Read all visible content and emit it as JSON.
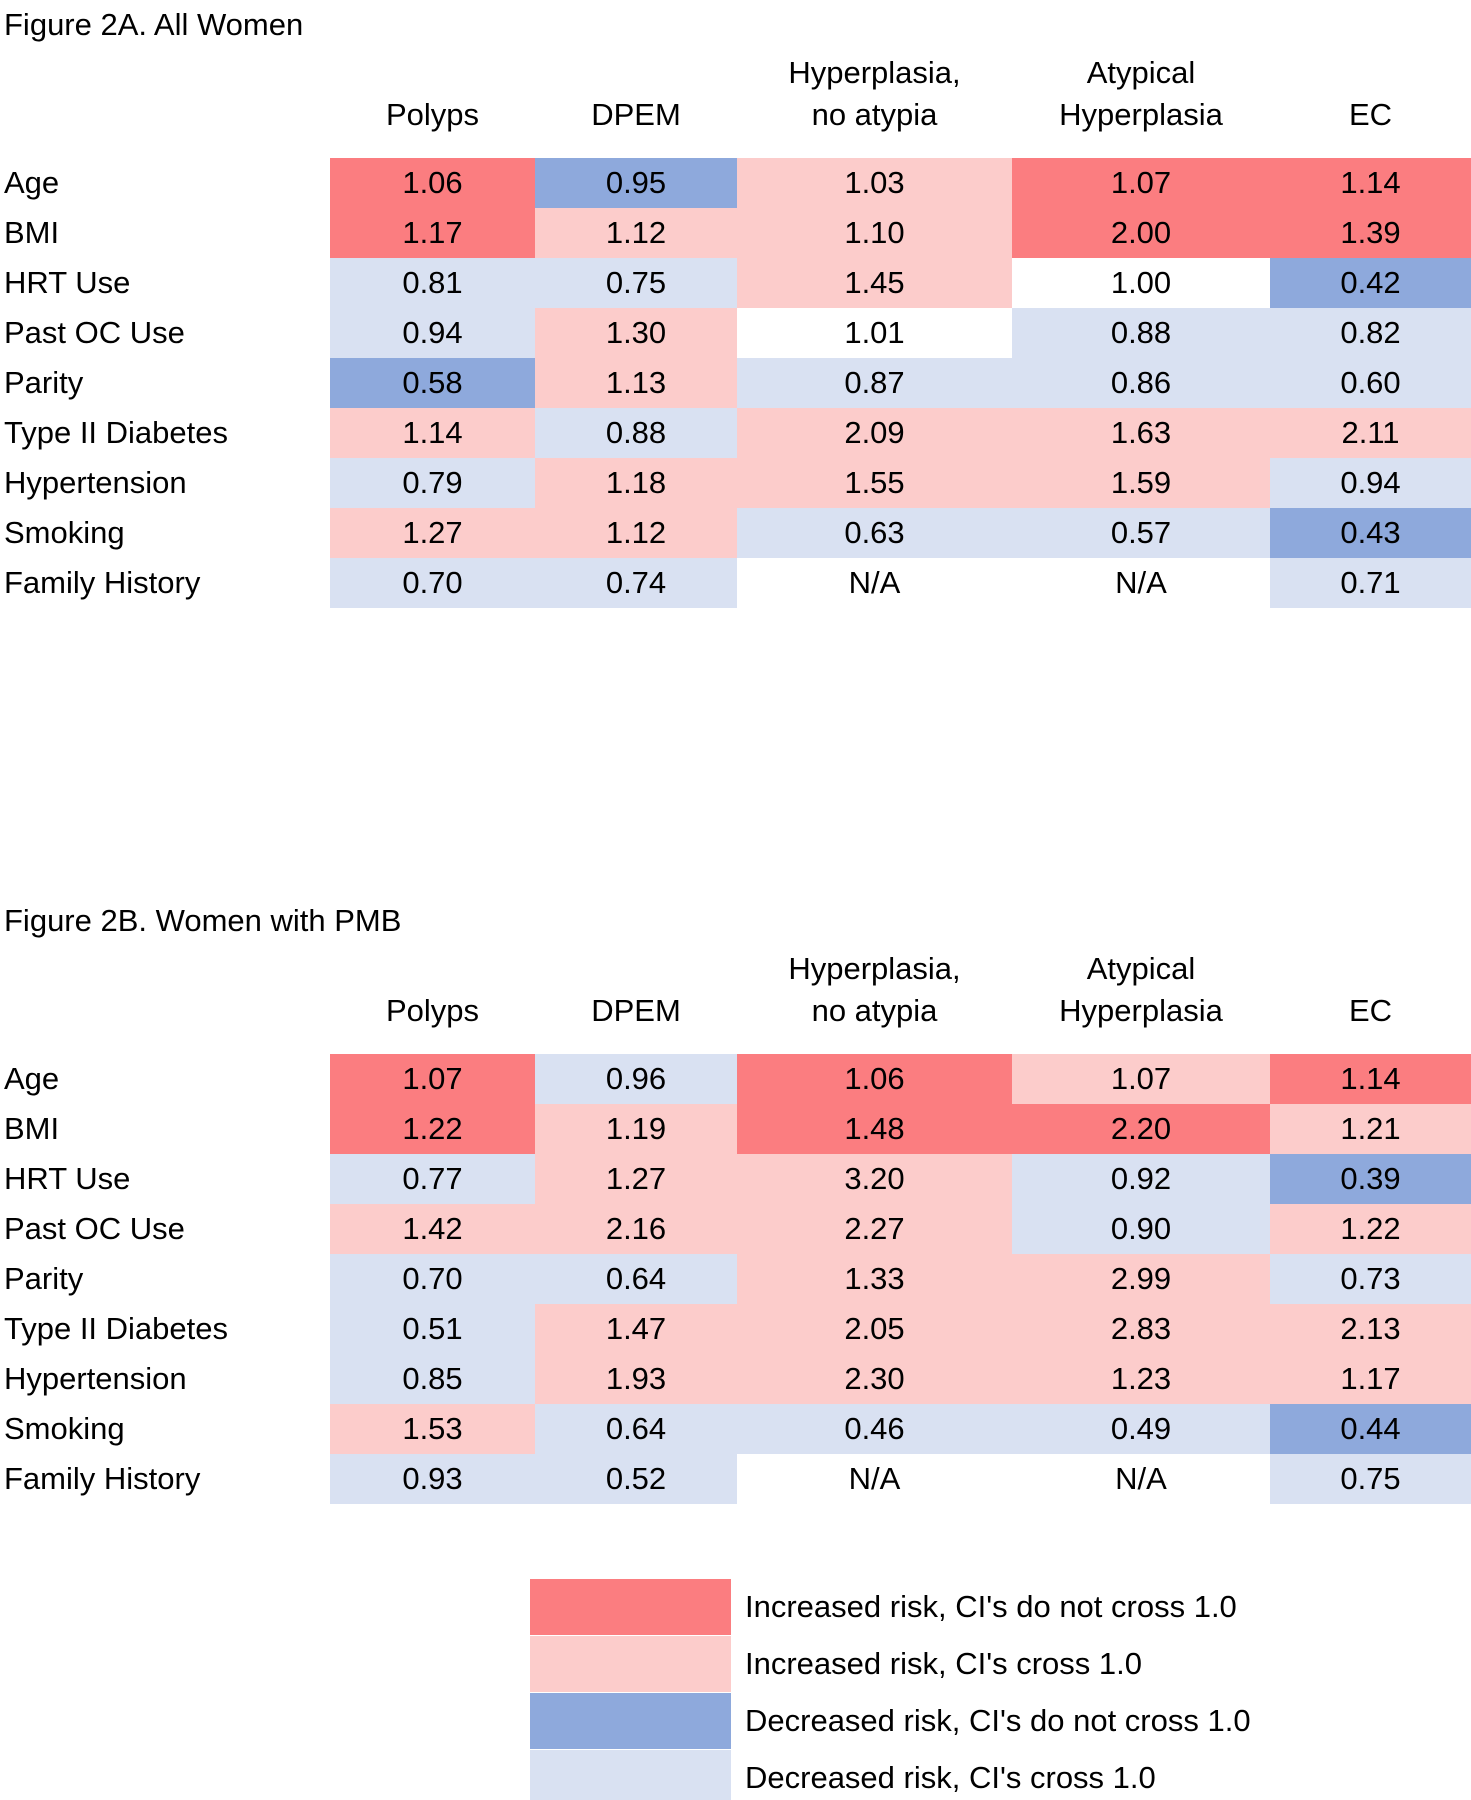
{
  "colors": {
    "increased_sig": "#FB7D80",
    "increased_ns": "#FCCCCB",
    "decreased_sig": "#8EA9DC",
    "decreased_ns": "#D9E1F2",
    "na": "#FFFFFF"
  },
  "figures": [
    {
      "title": "Figure 2A. All Women",
      "columns": [
        {
          "line1": "",
          "line2": "Polyps"
        },
        {
          "line1": "",
          "line2": "DPEM"
        },
        {
          "line1": "Hyperplasia,",
          "line2": "no atypia"
        },
        {
          "line1": "Atypical",
          "line2": "Hyperplasia"
        },
        {
          "line1": "",
          "line2": "EC"
        }
      ],
      "rows": [
        {
          "label": "Age",
          "cells": [
            [
              "1.06",
              "increased_sig"
            ],
            [
              "0.95",
              "decreased_sig"
            ],
            [
              "1.03",
              "increased_ns"
            ],
            [
              "1.07",
              "increased_sig"
            ],
            [
              "1.14",
              "increased_sig"
            ]
          ]
        },
        {
          "label": "BMI",
          "cells": [
            [
              "1.17",
              "increased_sig"
            ],
            [
              "1.12",
              "increased_ns"
            ],
            [
              "1.10",
              "increased_ns"
            ],
            [
              "2.00",
              "increased_sig"
            ],
            [
              "1.39",
              "increased_sig"
            ]
          ]
        },
        {
          "label": "HRT Use",
          "cells": [
            [
              "0.81",
              "decreased_ns"
            ],
            [
              "0.75",
              "decreased_ns"
            ],
            [
              "1.45",
              "increased_ns"
            ],
            [
              "1.00",
              "na"
            ],
            [
              "0.42",
              "decreased_sig"
            ]
          ]
        },
        {
          "label": "Past OC Use",
          "cells": [
            [
              "0.94",
              "decreased_ns"
            ],
            [
              "1.30",
              "increased_ns"
            ],
            [
              "1.01",
              "na"
            ],
            [
              "0.88",
              "decreased_ns"
            ],
            [
              "0.82",
              "decreased_ns"
            ]
          ]
        },
        {
          "label": "Parity",
          "cells": [
            [
              "0.58",
              "decreased_sig"
            ],
            [
              "1.13",
              "increased_ns"
            ],
            [
              "0.87",
              "decreased_ns"
            ],
            [
              "0.86",
              "decreased_ns"
            ],
            [
              "0.60",
              "decreased_ns"
            ]
          ]
        },
        {
          "label": "Type II Diabetes",
          "cells": [
            [
              "1.14",
              "increased_ns"
            ],
            [
              "0.88",
              "decreased_ns"
            ],
            [
              "2.09",
              "increased_ns"
            ],
            [
              "1.63",
              "increased_ns"
            ],
            [
              "2.11",
              "increased_ns"
            ]
          ]
        },
        {
          "label": "Hypertension",
          "cells": [
            [
              "0.79",
              "decreased_ns"
            ],
            [
              "1.18",
              "increased_ns"
            ],
            [
              "1.55",
              "increased_ns"
            ],
            [
              "1.59",
              "increased_ns"
            ],
            [
              "0.94",
              "decreased_ns"
            ]
          ]
        },
        {
          "label": "Smoking",
          "cells": [
            [
              "1.27",
              "increased_ns"
            ],
            [
              "1.12",
              "increased_ns"
            ],
            [
              "0.63",
              "decreased_ns"
            ],
            [
              "0.57",
              "decreased_ns"
            ],
            [
              "0.43",
              "decreased_sig"
            ]
          ]
        },
        {
          "label": "Family History",
          "cells": [
            [
              "0.70",
              "decreased_ns"
            ],
            [
              "0.74",
              "decreased_ns"
            ],
            [
              "N/A",
              "na"
            ],
            [
              "N/A",
              "na"
            ],
            [
              "0.71",
              "decreased_ns"
            ]
          ]
        }
      ]
    },
    {
      "title": "Figure 2B. Women with PMB",
      "columns": [
        {
          "line1": "",
          "line2": "Polyps"
        },
        {
          "line1": "",
          "line2": "DPEM"
        },
        {
          "line1": "Hyperplasia,",
          "line2": "no atypia"
        },
        {
          "line1": "Atypical",
          "line2": "Hyperplasia"
        },
        {
          "line1": "",
          "line2": "EC"
        }
      ],
      "rows": [
        {
          "label": "Age",
          "cells": [
            [
              "1.07",
              "increased_sig"
            ],
            [
              "0.96",
              "decreased_ns"
            ],
            [
              "1.06",
              "increased_sig"
            ],
            [
              "1.07",
              "increased_ns"
            ],
            [
              "1.14",
              "increased_sig"
            ]
          ]
        },
        {
          "label": "BMI",
          "cells": [
            [
              "1.22",
              "increased_sig"
            ],
            [
              "1.19",
              "increased_ns"
            ],
            [
              "1.48",
              "increased_sig"
            ],
            [
              "2.20",
              "increased_sig"
            ],
            [
              "1.21",
              "increased_ns"
            ]
          ]
        },
        {
          "label": "HRT Use",
          "cells": [
            [
              "0.77",
              "decreased_ns"
            ],
            [
              "1.27",
              "increased_ns"
            ],
            [
              "3.20",
              "increased_ns"
            ],
            [
              "0.92",
              "decreased_ns"
            ],
            [
              "0.39",
              "decreased_sig"
            ]
          ]
        },
        {
          "label": "Past OC Use",
          "cells": [
            [
              "1.42",
              "increased_ns"
            ],
            [
              "2.16",
              "increased_ns"
            ],
            [
              "2.27",
              "increased_ns"
            ],
            [
              "0.90",
              "decreased_ns"
            ],
            [
              "1.22",
              "increased_ns"
            ]
          ]
        },
        {
          "label": "Parity",
          "cells": [
            [
              "0.70",
              "decreased_ns"
            ],
            [
              "0.64",
              "decreased_ns"
            ],
            [
              "1.33",
              "increased_ns"
            ],
            [
              "2.99",
              "increased_ns"
            ],
            [
              "0.73",
              "decreased_ns"
            ]
          ]
        },
        {
          "label": "Type II Diabetes",
          "cells": [
            [
              "0.51",
              "decreased_ns"
            ],
            [
              "1.47",
              "increased_ns"
            ],
            [
              "2.05",
              "increased_ns"
            ],
            [
              "2.83",
              "increased_ns"
            ],
            [
              "2.13",
              "increased_ns"
            ]
          ]
        },
        {
          "label": "Hypertension",
          "cells": [
            [
              "0.85",
              "decreased_ns"
            ],
            [
              "1.93",
              "increased_ns"
            ],
            [
              "2.30",
              "increased_ns"
            ],
            [
              "1.23",
              "increased_ns"
            ],
            [
              "1.17",
              "increased_ns"
            ]
          ]
        },
        {
          "label": "Smoking",
          "cells": [
            [
              "1.53",
              "increased_ns"
            ],
            [
              "0.64",
              "decreased_ns"
            ],
            [
              "0.46",
              "decreased_ns"
            ],
            [
              "0.49",
              "decreased_ns"
            ],
            [
              "0.44",
              "decreased_sig"
            ]
          ]
        },
        {
          "label": "Family History",
          "cells": [
            [
              "0.93",
              "decreased_ns"
            ],
            [
              "0.52",
              "decreased_ns"
            ],
            [
              "N/A",
              "na"
            ],
            [
              "N/A",
              "na"
            ],
            [
              "0.75",
              "decreased_ns"
            ]
          ]
        }
      ]
    }
  ],
  "legend": [
    {
      "label": "Increased risk, CI's do not cross 1.0",
      "color": "increased_sig"
    },
    {
      "label": "Increased risk, CI's cross 1.0",
      "color": "increased_ns"
    },
    {
      "label": "Decreased risk, CI's do not cross 1.0",
      "color": "decreased_sig"
    },
    {
      "label": "Decreased risk, CI's cross 1.0",
      "color": "decreased_ns"
    }
  ],
  "chart_data": [
    {
      "type": "heatmap",
      "title": "Figure 2A. All Women",
      "columns": [
        "Polyps",
        "DPEM",
        "Hyperplasia, no atypia",
        "Atypical Hyperplasia",
        "EC"
      ],
      "rows": [
        "Age",
        "BMI",
        "HRT Use",
        "Past OC Use",
        "Parity",
        "Type II Diabetes",
        "Hypertension",
        "Smoking",
        "Family History"
      ],
      "values": [
        [
          1.06,
          0.95,
          1.03,
          1.07,
          1.14
        ],
        [
          1.17,
          1.12,
          1.1,
          2.0,
          1.39
        ],
        [
          0.81,
          0.75,
          1.45,
          1.0,
          0.42
        ],
        [
          0.94,
          1.3,
          1.01,
          0.88,
          0.82
        ],
        [
          0.58,
          1.13,
          0.87,
          0.86,
          0.6
        ],
        [
          1.14,
          0.88,
          2.09,
          1.63,
          2.11
        ],
        [
          0.79,
          1.18,
          1.55,
          1.59,
          0.94
        ],
        [
          1.27,
          1.12,
          0.63,
          0.57,
          0.43
        ],
        [
          0.7,
          0.74,
          null,
          null,
          0.71
        ]
      ],
      "cell_classes": [
        [
          "increased_sig",
          "decreased_sig",
          "increased_ns",
          "increased_sig",
          "increased_sig"
        ],
        [
          "increased_sig",
          "increased_ns",
          "increased_ns",
          "increased_sig",
          "increased_sig"
        ],
        [
          "decreased_ns",
          "decreased_ns",
          "increased_ns",
          "na",
          "decreased_sig"
        ],
        [
          "decreased_ns",
          "increased_ns",
          "na",
          "decreased_ns",
          "decreased_ns"
        ],
        [
          "decreased_sig",
          "increased_ns",
          "decreased_ns",
          "decreased_ns",
          "decreased_ns"
        ],
        [
          "increased_ns",
          "decreased_ns",
          "increased_ns",
          "increased_ns",
          "increased_ns"
        ],
        [
          "decreased_ns",
          "increased_ns",
          "increased_ns",
          "increased_ns",
          "decreased_ns"
        ],
        [
          "increased_ns",
          "increased_ns",
          "decreased_ns",
          "decreased_ns",
          "decreased_sig"
        ],
        [
          "decreased_ns",
          "decreased_ns",
          "na",
          "na",
          "decreased_ns"
        ]
      ],
      "legend_position": "bottom",
      "grid": false
    },
    {
      "type": "heatmap",
      "title": "Figure 2B. Women with PMB",
      "columns": [
        "Polyps",
        "DPEM",
        "Hyperplasia, no atypia",
        "Atypical Hyperplasia",
        "EC"
      ],
      "rows": [
        "Age",
        "BMI",
        "HRT Use",
        "Past OC Use",
        "Parity",
        "Type II Diabetes",
        "Hypertension",
        "Smoking",
        "Family History"
      ],
      "values": [
        [
          1.07,
          0.96,
          1.06,
          1.07,
          1.14
        ],
        [
          1.22,
          1.19,
          1.48,
          2.2,
          1.21
        ],
        [
          0.77,
          1.27,
          3.2,
          0.92,
          0.39
        ],
        [
          1.42,
          2.16,
          2.27,
          0.9,
          1.22
        ],
        [
          0.7,
          0.64,
          1.33,
          2.99,
          0.73
        ],
        [
          0.51,
          1.47,
          2.05,
          2.83,
          2.13
        ],
        [
          0.85,
          1.93,
          2.3,
          1.23,
          1.17
        ],
        [
          1.53,
          0.64,
          0.46,
          0.49,
          0.44
        ],
        [
          0.93,
          0.52,
          null,
          null,
          0.75
        ]
      ],
      "cell_classes": [
        [
          "increased_sig",
          "decreased_ns",
          "increased_sig",
          "increased_ns",
          "increased_sig"
        ],
        [
          "increased_sig",
          "increased_ns",
          "increased_sig",
          "increased_sig",
          "increased_ns"
        ],
        [
          "decreased_ns",
          "increased_ns",
          "increased_ns",
          "decreased_ns",
          "decreased_sig"
        ],
        [
          "increased_ns",
          "increased_ns",
          "increased_ns",
          "decreased_ns",
          "increased_ns"
        ],
        [
          "decreased_ns",
          "decreased_ns",
          "increased_ns",
          "increased_ns",
          "decreased_ns"
        ],
        [
          "decreased_ns",
          "increased_ns",
          "increased_ns",
          "increased_ns",
          "increased_ns"
        ],
        [
          "decreased_ns",
          "increased_ns",
          "increased_ns",
          "increased_ns",
          "increased_ns"
        ],
        [
          "increased_ns",
          "decreased_ns",
          "decreased_ns",
          "decreased_ns",
          "decreased_sig"
        ],
        [
          "decreased_ns",
          "decreased_ns",
          "na",
          "na",
          "decreased_ns"
        ]
      ],
      "legend_position": "bottom",
      "grid": false
    }
  ]
}
